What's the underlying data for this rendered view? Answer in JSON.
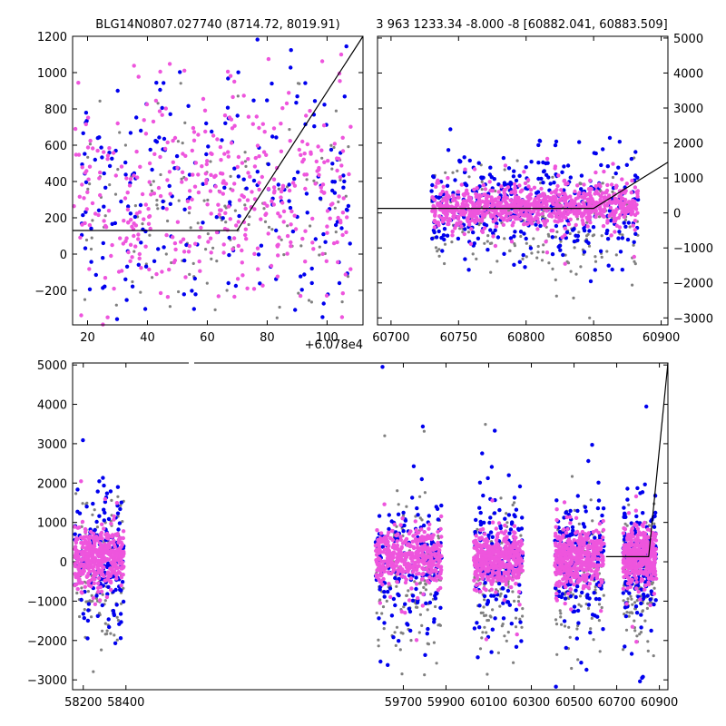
{
  "colors": {
    "gray": "#808080",
    "blue": "#0000ee",
    "pink": "#ee55dd",
    "model": "#000000",
    "axes": "#000000"
  },
  "chart_data": [
    {
      "id": "top-left",
      "type": "scatter",
      "title": "BLG14N0807.027740 (8714.72, 8019.91)",
      "xlim": [
        15,
        112
      ],
      "ylim": [
        -390,
        1200
      ],
      "x_offset_label": "+6.078e4",
      "xticks": [
        20,
        40,
        60,
        80,
        100
      ],
      "yticks": [
        -200,
        0,
        200,
        400,
        600,
        800,
        1000,
        1200
      ],
      "yaxis_side": "left",
      "model": {
        "x": [
          15,
          70,
          112
        ],
        "y": [
          130,
          130,
          1200
        ]
      },
      "series": [
        {
          "name": "gray",
          "x_range": [
            18,
            108
          ],
          "y_mean": 250,
          "y_sd": 320,
          "n": 150,
          "seed": 11
        },
        {
          "name": "blue",
          "x_range": [
            18,
            108
          ],
          "y_mean": 330,
          "y_sd": 360,
          "n": 230,
          "seed": 12
        },
        {
          "name": "pink",
          "x_range": [
            15,
            108
          ],
          "y_mean": 300,
          "y_sd": 300,
          "n": 420,
          "seed": 13
        }
      ]
    },
    {
      "id": "top-right",
      "type": "scatter",
      "title": "3 963 1233.34 -8.000 -8 [60882.041, 60883.509]",
      "xlim": [
        60690,
        60905
      ],
      "ylim": [
        -3200,
        5050
      ],
      "xticks": [
        60700,
        60750,
        60800,
        60850,
        60900
      ],
      "yticks": [
        -3000,
        -2000,
        -1000,
        0,
        1000,
        2000,
        3000,
        4000,
        5000
      ],
      "yaxis_side": "right",
      "model": {
        "x": [
          60690,
          60850,
          60905
        ],
        "y": [
          130,
          130,
          1450
        ]
      },
      "series": [
        {
          "name": "gray",
          "x_range": [
            60730,
            60883
          ],
          "y_mean": -250,
          "y_sd": 700,
          "n": 220,
          "seed": 21
        },
        {
          "name": "blue",
          "x_range": [
            60730,
            60883
          ],
          "y_mean": 150,
          "y_sd": 700,
          "n": 380,
          "seed": 22
        },
        {
          "name": "pink",
          "x_range": [
            60730,
            60883
          ],
          "y_mean": 200,
          "y_sd": 280,
          "n": 900,
          "seed": 23
        }
      ]
    },
    {
      "id": "bottom",
      "type": "scatter",
      "title": "",
      "xlim": [
        58150,
        60940
      ],
      "ylim": [
        -3250,
        5050
      ],
      "xticks": [
        58200,
        58400,
        59700,
        59900,
        60100,
        60300,
        60500,
        60700,
        60900
      ],
      "yticks": [
        -3000,
        -2000,
        -1000,
        0,
        1000,
        2000,
        3000,
        4000,
        5000
      ],
      "yaxis_side": "left",
      "axis_break_between": [
        58400,
        59700
      ],
      "model": {
        "x": [
          60650,
          60850,
          60940
        ],
        "y": [
          130,
          130,
          5050
        ]
      },
      "seasons": [
        {
          "x_range": [
            58160,
            58390
          ]
        },
        {
          "x_range": [
            59570,
            59880
          ]
        },
        {
          "x_range": [
            60030,
            60260
          ]
        },
        {
          "x_range": [
            60410,
            60640
          ]
        },
        {
          "x_range": [
            60730,
            60885
          ]
        }
      ],
      "series": [
        {
          "name": "gray",
          "y_mean": -400,
          "y_sd": 900,
          "n_per_season": 120,
          "seed": 31
        },
        {
          "name": "blue",
          "y_mean": 50,
          "y_sd": 800,
          "n_per_season": 170,
          "seed": 32
        },
        {
          "name": "pink",
          "y_mean": 100,
          "y_sd": 350,
          "n_per_season": 420,
          "seed": 33
        }
      ]
    }
  ]
}
